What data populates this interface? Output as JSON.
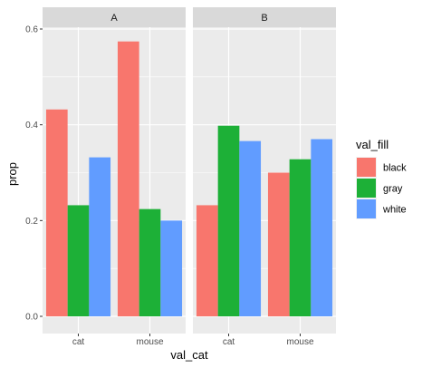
{
  "chart_data": {
    "type": "bar",
    "facets": [
      "A",
      "B"
    ],
    "categories": [
      "cat",
      "mouse"
    ],
    "series": [
      {
        "name": "black",
        "color": "#F8766D",
        "values": {
          "A": [
            0.432,
            0.574
          ],
          "B": [
            0.232,
            0.3
          ]
        }
      },
      {
        "name": "gray",
        "color": "#1DB037",
        "values": {
          "A": [
            0.232,
            0.224
          ],
          "B": [
            0.398,
            0.328
          ]
        }
      },
      {
        "name": "white",
        "color": "#619CFF",
        "values": {
          "A": [
            0.332,
            0.2
          ],
          "B": [
            0.366,
            0.37
          ]
        }
      }
    ],
    "xlabel": "val_cat",
    "ylabel": "prop",
    "legend_title": "val_fill",
    "legend_position": "right",
    "y_ticks": [
      0.0,
      0.2,
      0.4,
      0.6
    ],
    "y_tick_labels": [
      "0.0",
      "0.2",
      "0.4",
      "0.6"
    ],
    "ylim": [
      0,
      0.6
    ],
    "grid": true,
    "panel_background": "#EBEBEB",
    "strip_background": "#D9D9D9"
  }
}
